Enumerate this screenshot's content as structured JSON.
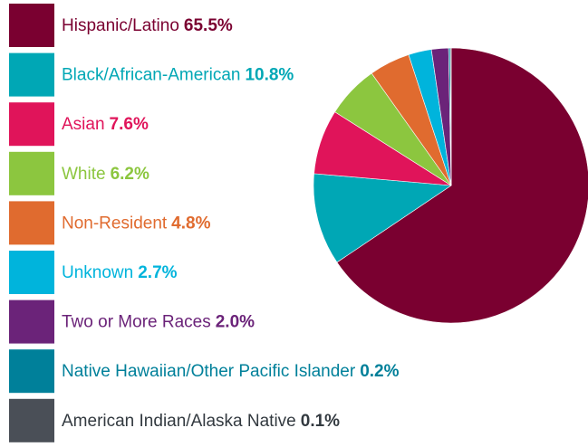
{
  "chart_data": {
    "type": "pie",
    "categories": [
      "Hispanic/Latino",
      "Black/African-American",
      "Asian",
      "White",
      "Non-Resident",
      "Unknown",
      "Two or More Races",
      "Native Hawaiian/Other Pacific Islander",
      "American Indian/Alaska Native"
    ],
    "values": [
      65.5,
      10.8,
      7.6,
      6.2,
      4.8,
      2.7,
      2.0,
      0.2,
      0.1
    ],
    "value_labels": [
      "65.5%",
      "10.8%",
      "7.6%",
      "6.2%",
      "4.8%",
      "2.7%",
      "2.0%",
      "0.2%",
      "0.1%"
    ],
    "colors": [
      "#7a0030",
      "#00a7b5",
      "#e0145a",
      "#8cc63f",
      "#e06b2f",
      "#00b4dc",
      "#6b2379",
      "#00809a",
      "#4a4f57"
    ]
  }
}
